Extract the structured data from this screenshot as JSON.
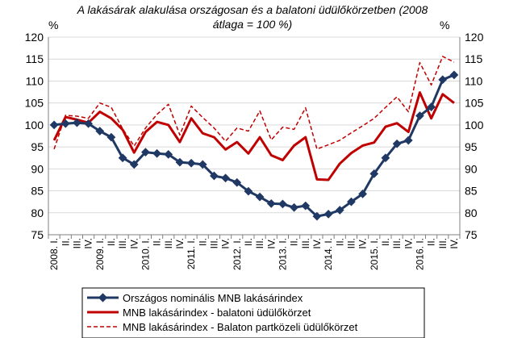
{
  "chart_data": {
    "type": "line",
    "title_line1": "A lakásárak alakulása országosan és a balatoni üdülőkörzetben (2008",
    "title_line2": "átlaga = 100 %)",
    "y_unit_left": "%",
    "y_unit_right": "%",
    "ylim": [
      75,
      120
    ],
    "yticks": [
      75,
      80,
      85,
      90,
      95,
      100,
      105,
      110,
      115,
      120
    ],
    "grid": true,
    "legend_position": "bottom",
    "x": [
      "2008. I.",
      "II.",
      "III.",
      "IV.",
      "2009. I.",
      "II.",
      "III.",
      "IV.",
      "2010. I.",
      "II.",
      "III.",
      "IV.",
      "2011. I.",
      "II.",
      "III.",
      "IV.",
      "2012. I.",
      "II.",
      "III.",
      "IV.",
      "2013. I.",
      "II.",
      "III.",
      "IV.",
      "2014. I.",
      "II.",
      "III.",
      "IV.",
      "2015. I.",
      "II.",
      "III.",
      "IV.",
      "2016. I.",
      "II.",
      "III.",
      "IV."
    ],
    "series": [
      {
        "name": "Országos nominális MNB lakásárindex",
        "color": "#1f3864",
        "style": "solid-marker",
        "values": [
          100,
          100.3,
          100.5,
          100.3,
          98.6,
          97.2,
          92.5,
          91,
          93.8,
          93.5,
          93.3,
          91.5,
          91.3,
          91,
          88.4,
          87.9,
          86.9,
          84.9,
          83.6,
          82.1,
          82,
          81.2,
          81.6,
          79.2,
          79.7,
          80.6,
          82.5,
          84.3,
          88.9,
          92.5,
          95.7,
          96.5,
          102.1,
          104.1,
          110.3,
          111.4
        ]
      },
      {
        "name": "MNB lakásárindex - balatoni üdülőkörzet",
        "color": "#c00000",
        "style": "solid",
        "values": [
          96.5,
          101.8,
          101.2,
          100.5,
          103,
          101.5,
          98.9,
          93.7,
          98.4,
          100.7,
          100,
          96.1,
          101.5,
          98.1,
          97.2,
          94.4,
          96.1,
          93.5,
          97.2,
          93.1,
          92,
          95.3,
          97.2,
          87.6,
          87.5,
          91.2,
          93.6,
          95.3,
          96,
          99.6,
          100.4,
          98.4,
          107.4,
          101.5,
          107,
          105
        ]
      },
      {
        "name": "MNB lakásárindex - Balaton partközeli üdülőkörzet",
        "color": "#c00000",
        "style": "dashed",
        "values": [
          94.5,
          102.2,
          102,
          101.5,
          105,
          104,
          99.1,
          95.2,
          99.3,
          102.4,
          104.7,
          97.7,
          104.3,
          101.7,
          99.3,
          96.3,
          99.3,
          98.6,
          103.2,
          96.6,
          99.5,
          99,
          103.9,
          94.5,
          95.5,
          96.5,
          98.2,
          99.8,
          101.5,
          104,
          106.4,
          103,
          114.2,
          109.1,
          115.6,
          114.3
        ]
      }
    ]
  }
}
